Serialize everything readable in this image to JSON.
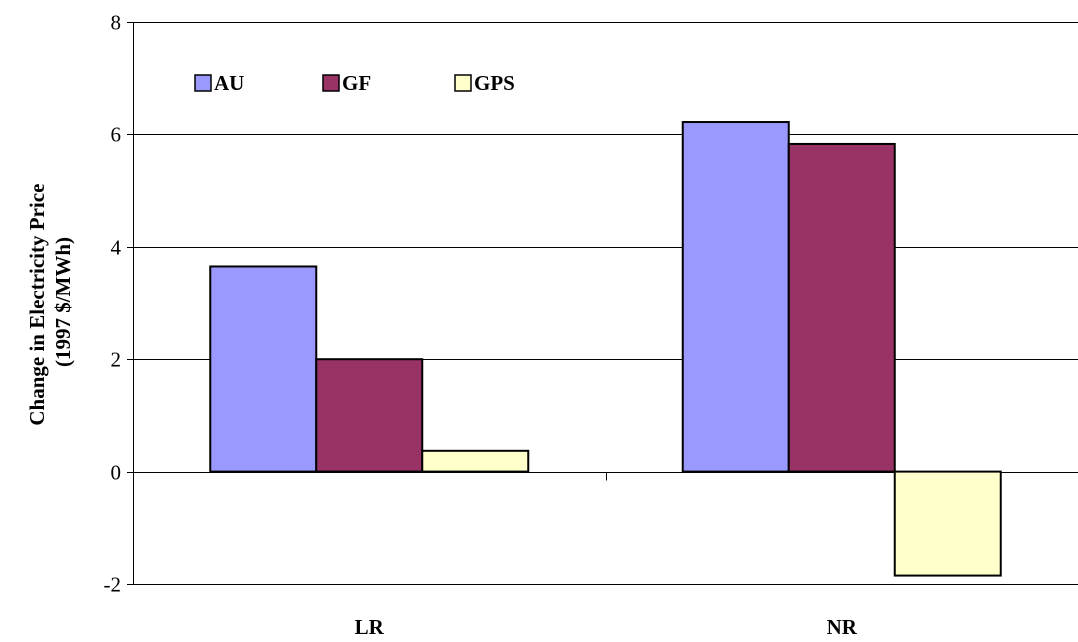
{
  "chart_data": {
    "type": "bar",
    "title": "",
    "xlabel": "",
    "ylabel_line1": "Change in Electricity Price",
    "ylabel_line2": "(1997 $/MWh)",
    "categories": [
      "LR",
      "NR"
    ],
    "series": [
      {
        "name": "AU",
        "color": "#9999ff",
        "values": [
          3.65,
          6.22
        ]
      },
      {
        "name": "GF",
        "color": "#993366",
        "values": [
          2.0,
          5.83
        ]
      },
      {
        "name": "GPS",
        "color": "#ffffcc",
        "values": [
          0.37,
          -1.85
        ]
      }
    ],
    "ylim": [
      -2,
      8
    ],
    "yticks": [
      -2,
      0,
      2,
      4,
      6,
      8
    ],
    "grid": true,
    "legend_position": "top-left"
  }
}
